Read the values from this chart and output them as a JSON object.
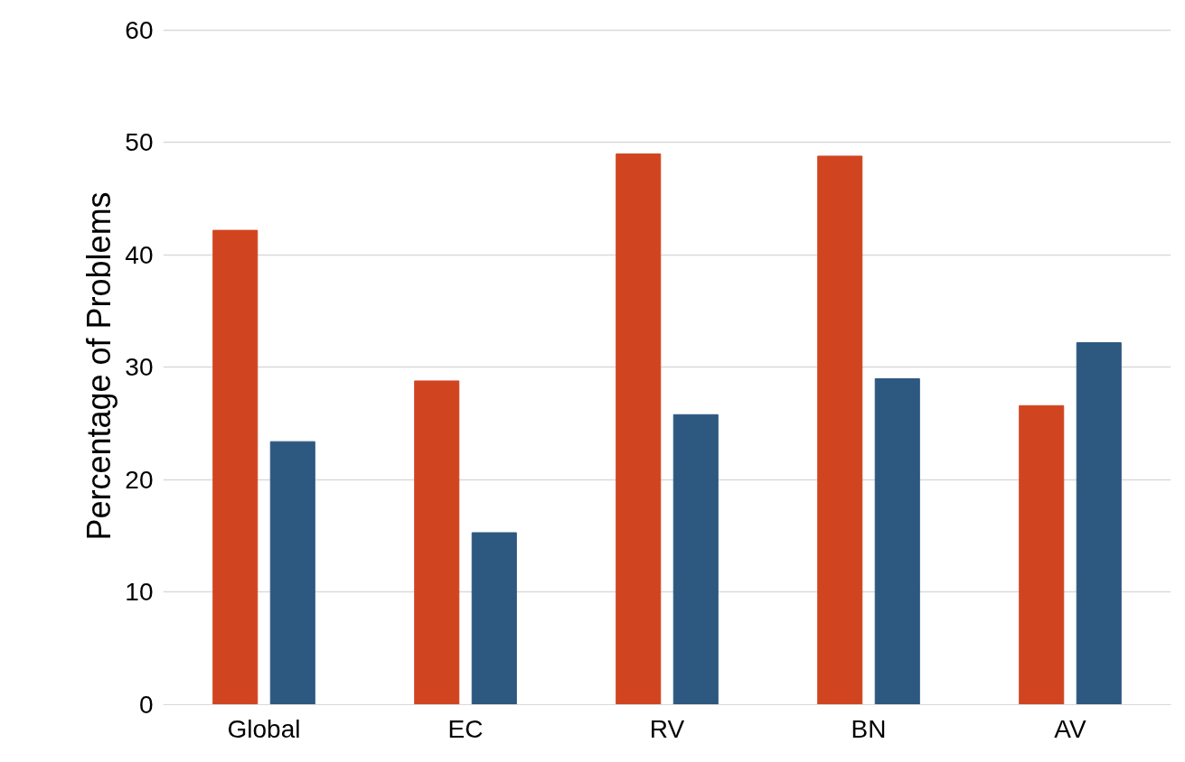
{
  "chart_data": {
    "type": "bar",
    "ylabel": "Percentage of Problems",
    "categories": [
      "Global",
      "EC",
      "RV",
      "BN",
      "AV"
    ],
    "series": [
      {
        "color": "#d04520",
        "values": [
          42.2,
          28.8,
          49.0,
          48.8,
          26.6
        ]
      },
      {
        "color": "#2d5880",
        "values": [
          23.4,
          15.3,
          25.8,
          29.0,
          32.2
        ]
      }
    ],
    "ylim": [
      0,
      60
    ],
    "yticks": [
      0,
      10,
      20,
      30,
      40,
      50,
      60
    ],
    "grid": "y"
  }
}
